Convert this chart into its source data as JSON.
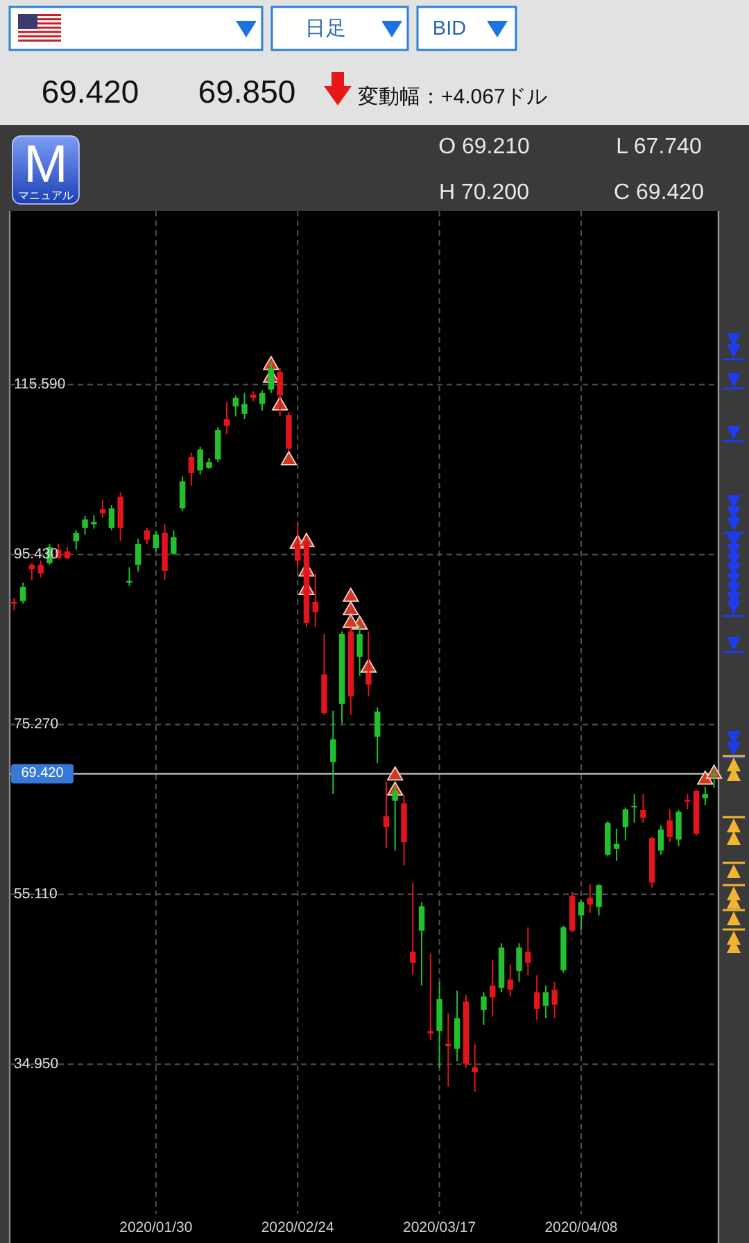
{
  "chart_data": {
    "type": "candlestick",
    "categories": [
      null,
      null,
      null,
      null,
      null,
      null,
      null,
      null,
      null,
      null,
      null,
      null,
      null,
      null,
      null,
      null,
      "2020/01/30",
      null,
      null,
      null,
      null,
      null,
      null,
      null,
      null,
      null,
      null,
      null,
      null,
      null,
      null,
      null,
      "2020/02/24",
      null,
      null,
      null,
      null,
      null,
      null,
      null,
      null,
      null,
      null,
      null,
      null,
      null,
      null,
      null,
      "2020/03/17",
      null,
      null,
      null,
      null,
      null,
      null,
      null,
      null,
      null,
      null,
      null,
      null,
      null,
      null,
      null,
      "2020/04/08",
      null,
      null,
      null,
      null,
      null,
      null,
      null,
      null,
      null,
      null,
      null,
      null,
      null,
      null,
      null
    ],
    "ohlc": [
      [
        89.8,
        90.3,
        88.8,
        89.6
      ],
      [
        89.9,
        92.1,
        89.6,
        91.6
      ],
      [
        94.2,
        94.4,
        92.4,
        93.7
      ],
      [
        94.2,
        94.7,
        92.7,
        93.2
      ],
      [
        94.4,
        96.7,
        94.2,
        96.3
      ],
      [
        96.0,
        96.7,
        94.9,
        95.0
      ],
      [
        95.8,
        96.3,
        94.9,
        95.0
      ],
      [
        97.0,
        98.3,
        96.0,
        98.0
      ],
      [
        98.6,
        100.0,
        97.8,
        99.6
      ],
      [
        99.0,
        100.1,
        98.5,
        99.3
      ],
      [
        100.8,
        101.9,
        99.8,
        100.3
      ],
      [
        98.6,
        101.3,
        98.3,
        100.9
      ],
      [
        102.3,
        102.8,
        97.0,
        98.6
      ],
      [
        92.1,
        93.9,
        91.7,
        92.3
      ],
      [
        94.2,
        97.3,
        93.4,
        96.7
      ],
      [
        98.3,
        98.6,
        96.7,
        97.2
      ],
      [
        96.2,
        98.2,
        95.8,
        97.8
      ],
      [
        98.0,
        99.0,
        92.4,
        93.5
      ],
      [
        95.5,
        98.3,
        95.4,
        97.5
      ],
      [
        100.9,
        104.7,
        100.6,
        104.1
      ],
      [
        107.0,
        107.5,
        103.6,
        105.1
      ],
      [
        105.4,
        108.2,
        104.9,
        107.9
      ],
      [
        105.7,
        106.9,
        105.6,
        106.4
      ],
      [
        106.7,
        110.5,
        106.4,
        110.2
      ],
      [
        111.5,
        113.5,
        109.7,
        110.7
      ],
      [
        113.0,
        114.3,
        111.8,
        114.0
      ],
      [
        112.1,
        114.6,
        111.5,
        113.3
      ],
      [
        114.4,
        114.8,
        113.6,
        114.0
      ],
      [
        113.3,
        114.9,
        112.5,
        114.6
      ],
      [
        115.0,
        118.3,
        114.6,
        117.5
      ],
      [
        117.1,
        117.6,
        111.8,
        114.3
      ],
      [
        112.0,
        112.3,
        107.7,
        108.0
      ],
      [
        96.7,
        99.3,
        93.7,
        94.7
      ],
      [
        97.0,
        97.7,
        86.8,
        87.3
      ],
      [
        89.8,
        93.2,
        86.8,
        88.6
      ],
      [
        81.2,
        86.0,
        76.4,
        76.6
      ],
      [
        70.8,
        76.9,
        67.0,
        73.5
      ],
      [
        77.7,
        86.3,
        75.4,
        86.0
      ],
      [
        86.3,
        86.8,
        76.4,
        78.6
      ],
      [
        83.3,
        87.1,
        81.0,
        86.0
      ],
      [
        81.4,
        86.3,
        78.6,
        80.0
      ],
      [
        73.8,
        77.3,
        70.7,
        76.8
      ],
      [
        64.4,
        68.5,
        60.6,
        63.1
      ],
      [
        66.2,
        68.0,
        60.3,
        67.4
      ],
      [
        65.9,
        66.9,
        58.5,
        61.3
      ],
      [
        48.3,
        56.5,
        45.5,
        47.0
      ],
      [
        50.8,
        54.2,
        44.3,
        53.7
      ],
      [
        38.9,
        48.1,
        37.8,
        38.6
      ],
      [
        38.9,
        44.7,
        34.5,
        42.7
      ],
      [
        37.4,
        41.0,
        32.3,
        37.1
      ],
      [
        36.8,
        43.7,
        35.3,
        40.4
      ],
      [
        42.4,
        43.2,
        34.5,
        35.0
      ],
      [
        34.6,
        37.4,
        31.7,
        34.0
      ],
      [
        41.4,
        43.5,
        39.6,
        43.0
      ],
      [
        44.3,
        47.3,
        40.6,
        42.9
      ],
      [
        44.0,
        49.3,
        43.5,
        48.8
      ],
      [
        45.0,
        46.8,
        43.0,
        43.8
      ],
      [
        46.0,
        49.3,
        44.7,
        48.8
      ],
      [
        48.3,
        51.2,
        45.5,
        47.0
      ],
      [
        43.5,
        45.5,
        40.2,
        41.5
      ],
      [
        41.9,
        44.3,
        40.4,
        43.5
      ],
      [
        43.8,
        44.7,
        40.4,
        42.0
      ],
      [
        46.1,
        51.4,
        45.8,
        51.2
      ],
      [
        54.9,
        55.4,
        50.6,
        50.8
      ],
      [
        52.6,
        54.5,
        50.9,
        54.2
      ],
      [
        54.7,
        56.3,
        52.9,
        53.9
      ],
      [
        53.6,
        56.3,
        52.6,
        56.2
      ],
      [
        59.8,
        63.8,
        59.6,
        63.6
      ],
      [
        60.5,
        62.9,
        59.1,
        61.1
      ],
      [
        63.1,
        65.4,
        61.5,
        65.2
      ],
      [
        65.5,
        67.0,
        63.6,
        65.6
      ],
      [
        65.1,
        67.0,
        63.6,
        64.2
      ],
      [
        61.8,
        61.9,
        55.9,
        56.5
      ],
      [
        60.3,
        63.3,
        59.8,
        62.8
      ],
      [
        63.9,
        65.2,
        61.3,
        61.9
      ],
      [
        61.6,
        65.1,
        60.8,
        64.9
      ],
      [
        66.3,
        67.0,
        65.2,
        66.1
      ],
      [
        67.4,
        67.5,
        62.1,
        62.3
      ],
      [
        66.5,
        67.9,
        65.7,
        67.0
      ],
      [
        69.21,
        70.2,
        67.74,
        69.42
      ]
    ],
    "colors": [
      "#e3141c",
      "#22c02e",
      "#e3141c",
      "#e3141c",
      "#22c02e",
      "#e3141c",
      "#e3141c",
      "#22c02e",
      "#22c02e",
      "#22c02e",
      "#e3141c",
      "#22c02e",
      "#e3141c",
      "#22c02e",
      "#22c02e",
      "#e3141c",
      "#22c02e",
      "#e3141c",
      "#22c02e",
      "#22c02e",
      "#e3141c",
      "#22c02e",
      "#22c02e",
      "#22c02e",
      "#e3141c",
      "#22c02e",
      "#22c02e",
      "#e3141c",
      "#22c02e",
      "#22c02e",
      "#e3141c",
      "#e3141c",
      "#e3141c",
      "#e3141c",
      "#e3141c",
      "#e3141c",
      "#22c02e",
      "#22c02e",
      "#e3141c",
      "#22c02e",
      "#e3141c",
      "#22c02e",
      "#e3141c",
      "#22c02e",
      "#e3141c",
      "#e3141c",
      "#22c02e",
      "#e3141c",
      "#22c02e",
      "#e3141c",
      "#22c02e",
      "#e3141c",
      "#e3141c",
      "#22c02e",
      "#e3141c",
      "#22c02e",
      "#e3141c",
      "#22c02e",
      "#e3141c",
      "#e3141c",
      "#22c02e",
      "#e3141c",
      "#22c02e",
      "#e3141c",
      "#22c02e",
      "#e3141c",
      "#22c02e",
      "#22c02e",
      "#22c02e",
      "#22c02e",
      "#22c02e",
      "#e3141c",
      "#e3141c",
      "#22c02e",
      "#e3141c",
      "#22c02e",
      "#e3141c",
      "#e3141c",
      "#22c02e",
      "#22c02e"
    ],
    "series": [
      {
        "type": "scatter",
        "marker": "triangle",
        "color": "#cf3a22",
        "values": [
          null,
          null,
          null,
          null,
          null,
          null,
          null,
          null,
          null,
          null,
          null,
          null,
          null,
          null,
          null,
          null,
          null,
          null,
          null,
          null,
          null,
          null,
          null,
          null,
          null,
          null,
          null,
          null,
          null,
          117.9,
          113.1,
          106.6,
          96.7,
          96.9,
          null,
          null,
          null,
          null,
          90.4,
          87.1,
          82.0,
          null,
          null,
          69.2,
          null,
          null,
          null,
          null,
          null,
          null,
          null,
          null,
          null,
          null,
          null,
          null,
          null,
          null,
          null,
          null,
          null,
          null,
          null,
          null,
          null,
          null,
          null,
          null,
          null,
          null,
          null,
          null,
          null,
          null,
          null,
          null,
          null,
          null,
          68.7,
          69.4
        ]
      },
      {
        "type": "scatter",
        "marker": "triangle",
        "color": "#cf3a22",
        "values": [
          null,
          null,
          null,
          null,
          null,
          null,
          null,
          null,
          null,
          null,
          null,
          null,
          null,
          null,
          null,
          null,
          null,
          null,
          null,
          null,
          null,
          null,
          null,
          null,
          null,
          null,
          null,
          null,
          null,
          116.4,
          null,
          null,
          null,
          93.4,
          null,
          null,
          null,
          null,
          88.8,
          null,
          null,
          null,
          null,
          67.4,
          null,
          null,
          null,
          null,
          null,
          null,
          null,
          null,
          null,
          null,
          null,
          null,
          null,
          null,
          null,
          null,
          null,
          null,
          null,
          null,
          null,
          null,
          null,
          null,
          null,
          null,
          null,
          null,
          null,
          null,
          null,
          null,
          null,
          null,
          null,
          null
        ]
      },
      {
        "type": "scatter",
        "marker": "triangle",
        "color": "#cf3a22",
        "values": [
          null,
          null,
          null,
          null,
          null,
          null,
          null,
          null,
          null,
          null,
          null,
          null,
          null,
          null,
          null,
          null,
          null,
          null,
          null,
          null,
          null,
          null,
          null,
          null,
          null,
          null,
          null,
          null,
          null,
          null,
          null,
          null,
          null,
          91.2,
          null,
          null,
          null,
          null,
          87.3,
          null,
          null,
          null,
          null,
          null,
          null,
          null,
          null,
          null,
          null,
          null,
          null,
          null,
          null,
          null,
          null,
          null,
          null,
          null,
          null,
          null,
          null,
          null,
          null,
          null,
          null,
          null,
          null,
          null,
          null,
          null,
          null,
          null,
          null,
          null,
          null,
          null,
          null,
          null,
          null,
          null
        ]
      }
    ],
    "ylim": [
      17.2,
      136.2
    ],
    "yticks": [
      {
        "value": 34.95,
        "label": "34.950"
      },
      {
        "value": 55.11,
        "label": "55.110"
      },
      {
        "value": 75.27,
        "label": "75.270"
      },
      {
        "value": 95.43,
        "label": "95.430"
      },
      {
        "value": 115.59,
        "label": "115.590"
      }
    ],
    "grid": true,
    "ref_lines": [
      {
        "axis": "y",
        "value": 69.42,
        "label": "69.420",
        "color": "#b4b4b4"
      }
    ],
    "annotations": [
      "日足",
      "BID",
      "69.420",
      "69.850",
      "変動幅：+4.067ドル",
      "M",
      "マニュアル",
      "O 69.210",
      "L 67.740",
      "H 70.200",
      "C 69.420"
    ]
  }
}
